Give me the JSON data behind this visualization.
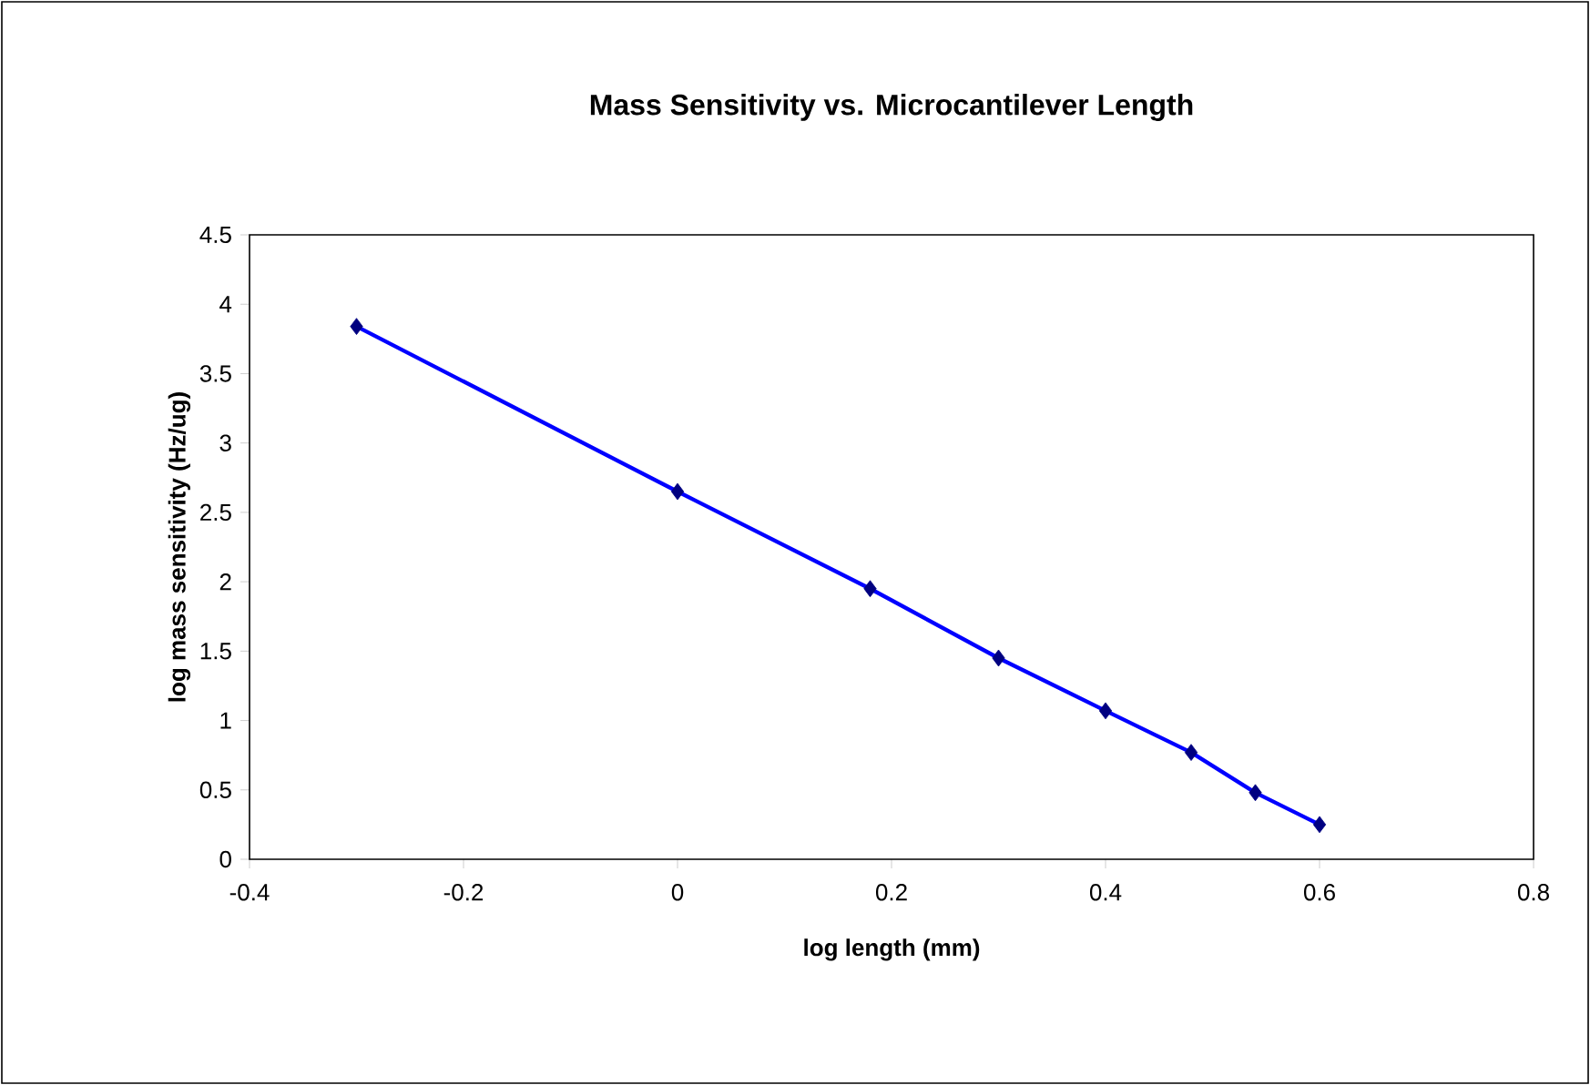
{
  "chart_data": {
    "type": "line",
    "title": "Mass Sensitivity vs. Microcantilever Length",
    "xlabel": "log length (mm)",
    "ylabel": "log mass sensitivity (Hz/ug)",
    "xlim": [
      -0.4,
      0.8
    ],
    "xticks": [
      -0.4,
      -0.2,
      0,
      0.2,
      0.4,
      0.6,
      0.8
    ],
    "ylim": [
      0,
      4.5
    ],
    "yticks": [
      0,
      0.5,
      1,
      1.5,
      2,
      2.5,
      3,
      3.5,
      4,
      4.5
    ],
    "marker": "diamond",
    "line_style": "solid",
    "series": [
      {
        "color": "#0000ff",
        "colors": [
          "#000080",
          "#000080",
          "#000080",
          "#000080",
          "#000080",
          "#000080",
          "#000080",
          "#000080"
        ],
        "x": [
          -0.3,
          0,
          0.18,
          0.3,
          0.4,
          0.48,
          0.54,
          0.6
        ],
        "values": [
          3.84,
          2.65,
          1.95,
          1.45,
          1.07,
          0.77,
          0.48,
          0.25
        ]
      }
    ]
  }
}
